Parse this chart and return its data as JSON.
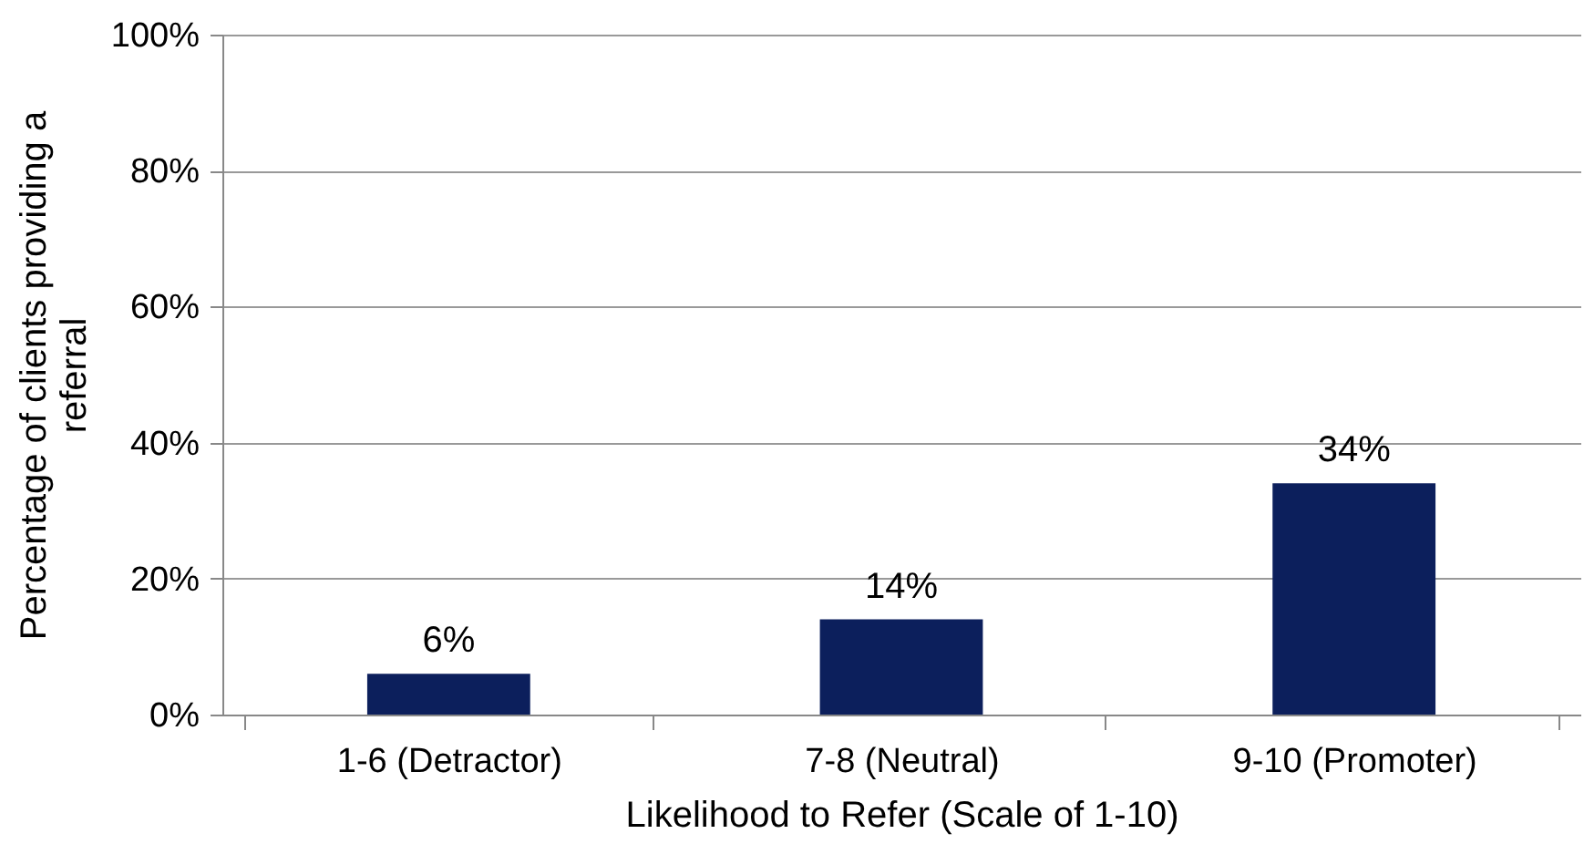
{
  "chart_data": {
    "type": "bar",
    "categories": [
      "1-6 (Detractor)",
      "7-8 (Neutral)",
      "9-10 (Promoter)"
    ],
    "values": [
      6,
      14,
      34
    ],
    "value_labels": [
      "6%",
      "14%",
      "34%"
    ],
    "color": "#0c1f5c",
    "xlabel": "Likelihood to Refer (Scale of 1-10)",
    "ylabel": "Percentage of clients providing a referral",
    "ylim": [
      0,
      100
    ],
    "yticks": [
      {
        "value": 0,
        "label": "0%"
      },
      {
        "value": 20,
        "label": "20%"
      },
      {
        "value": 40,
        "label": "40%"
      },
      {
        "value": 60,
        "label": "60%"
      },
      {
        "value": 80,
        "label": "80%"
      },
      {
        "value": 100,
        "label": "100%"
      }
    ],
    "grid": "y"
  }
}
